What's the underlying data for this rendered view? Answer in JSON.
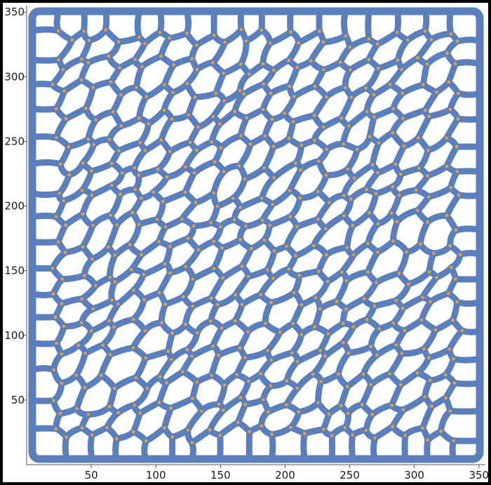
{
  "chart_data": {
    "type": "network-graph",
    "description_visible": "grain-boundary / cell network with junction points",
    "x_ticks": [
      "50",
      "100",
      "150",
      "200",
      "250",
      "300",
      "350"
    ],
    "y_ticks": [
      "50",
      "100",
      "150",
      "200",
      "250",
      "300",
      "350"
    ],
    "x_range": [
      0,
      355
    ],
    "y_range": [
      0,
      355
    ],
    "edge_color": "#5b7fbd",
    "node_color": "#e8a03a",
    "background_color": "#ffffff",
    "frame_color": "#000000"
  }
}
